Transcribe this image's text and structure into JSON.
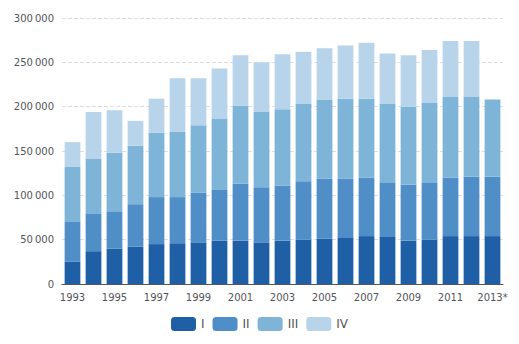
{
  "chart_data": {
    "type": "bar",
    "stacked": true,
    "categories": [
      "1993",
      null,
      "1995",
      null,
      "1997",
      null,
      "1999",
      null,
      "2001",
      null,
      "2003",
      null,
      "2005",
      null,
      "2007",
      null,
      "2009",
      null,
      "2011",
      null,
      "2013*"
    ],
    "series": [
      {
        "name": "I",
        "color": "#1f5fa6",
        "values": [
          25000,
          37000,
          40000,
          42000,
          45000,
          46000,
          47000,
          49000,
          49000,
          47000,
          49000,
          50000,
          51000,
          52000,
          54000,
          53000,
          49000,
          50000,
          54000,
          54000,
          54000
        ]
      },
      {
        "name": "II",
        "color": "#4f8ec7",
        "values": [
          45000,
          42000,
          42000,
          48000,
          53000,
          52000,
          56000,
          57000,
          64000,
          62000,
          62000,
          66000,
          68000,
          67000,
          66000,
          61000,
          63000,
          64000,
          66000,
          67000,
          67000
        ]
      },
      {
        "name": "III",
        "color": "#7db4d8",
        "values": [
          62000,
          62000,
          66000,
          66000,
          73000,
          74000,
          76000,
          80000,
          88000,
          85000,
          86000,
          87000,
          89000,
          90000,
          89000,
          89000,
          88000,
          90000,
          91000,
          90000,
          87000
        ]
      },
      {
        "name": "IV",
        "color": "#b8d4ea",
        "values": [
          28000,
          53000,
          48000,
          28000,
          38000,
          60000,
          53000,
          57000,
          57000,
          56000,
          62000,
          59000,
          58000,
          60000,
          63000,
          57000,
          58000,
          60000,
          63000,
          63000,
          0
        ]
      }
    ],
    "ylim": [
      0,
      300000
    ],
    "yticks": [
      0,
      {
        "value": 50000,
        "label": "50 000"
      },
      {
        "value": 100000,
        "label": "100 000"
      },
      {
        "value": 150000,
        "label": "150 000"
      },
      {
        "value": 200000,
        "label": "200 000"
      },
      {
        "value": 250000,
        "label": "250 000"
      },
      {
        "value": 300000,
        "label": "300 000"
      }
    ],
    "grid": true,
    "legend": "bottom"
  }
}
